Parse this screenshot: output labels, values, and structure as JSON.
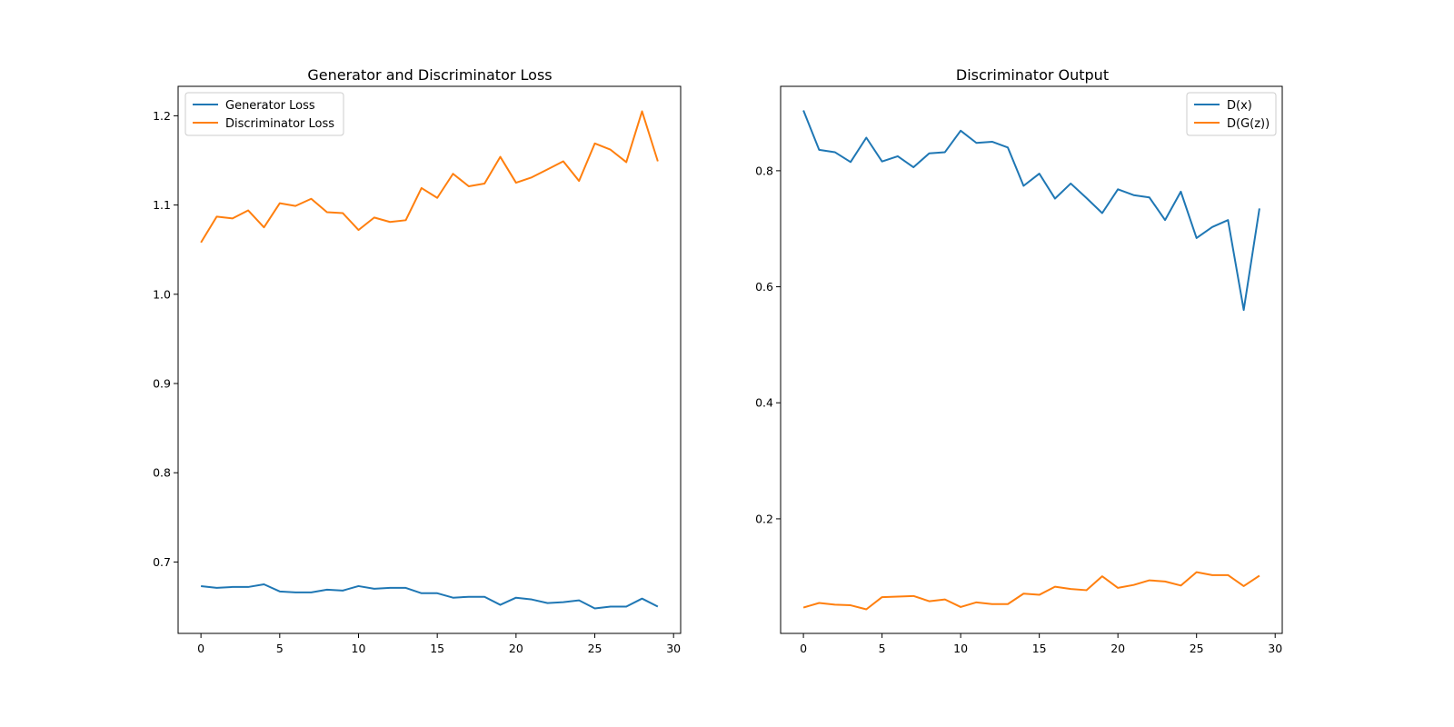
{
  "colors": {
    "series_1": "#1f77b4",
    "series_2": "#ff7f0e",
    "axes": "#000000",
    "legend_border": "#cccccc",
    "background": "#ffffff"
  },
  "chart_data": [
    {
      "type": "line",
      "title": "Generator and Discriminator Loss",
      "xlabel": "",
      "ylabel": "",
      "xlim": [
        -1.45,
        30.45
      ],
      "ylim": [
        0.62,
        1.233
      ],
      "xticks": [
        0,
        5,
        10,
        15,
        20,
        25,
        30
      ],
      "yticks": [
        0.7,
        0.8,
        0.9,
        1.0,
        1.1,
        1.2
      ],
      "ytick_labels": [
        "0.7",
        "0.8",
        "0.9",
        "1.0",
        "1.1",
        "1.2"
      ],
      "grid": false,
      "legend_position": "upper left",
      "x": [
        0,
        1,
        2,
        3,
        4,
        5,
        6,
        7,
        8,
        9,
        10,
        11,
        12,
        13,
        14,
        15,
        16,
        17,
        18,
        19,
        20,
        21,
        22,
        23,
        24,
        25,
        26,
        27,
        28,
        29
      ],
      "series": [
        {
          "name": "Generator Loss",
          "color": "#1f77b4",
          "values": [
            0.673,
            0.671,
            0.672,
            0.672,
            0.675,
            0.667,
            0.666,
            0.666,
            0.669,
            0.668,
            0.673,
            0.67,
            0.671,
            0.671,
            0.665,
            0.665,
            0.66,
            0.661,
            0.661,
            0.652,
            0.66,
            0.658,
            0.654,
            0.655,
            0.657,
            0.648,
            0.65,
            0.65,
            0.659,
            0.65
          ]
        },
        {
          "name": "Discriminator Loss",
          "color": "#ff7f0e",
          "values": [
            1.058,
            1.087,
            1.085,
            1.094,
            1.075,
            1.102,
            1.099,
            1.107,
            1.092,
            1.091,
            1.072,
            1.086,
            1.081,
            1.083,
            1.119,
            1.108,
            1.135,
            1.121,
            1.124,
            1.154,
            1.125,
            1.131,
            1.14,
            1.149,
            1.127,
            1.169,
            1.162,
            1.148,
            1.205,
            1.149
          ]
        }
      ]
    },
    {
      "type": "line",
      "title": "Discriminator Output",
      "xlabel": "",
      "ylabel": "",
      "xlim": [
        -1.45,
        30.45
      ],
      "ylim": [
        0.0025,
        0.9455
      ],
      "xticks": [
        0,
        5,
        10,
        15,
        20,
        25,
        30
      ],
      "yticks": [
        0.2,
        0.4,
        0.6,
        0.8
      ],
      "ytick_labels": [
        "0.2",
        "0.4",
        "0.6",
        "0.8"
      ],
      "grid": false,
      "legend_position": "upper right",
      "x": [
        0,
        1,
        2,
        3,
        4,
        5,
        6,
        7,
        8,
        9,
        10,
        11,
        12,
        13,
        14,
        15,
        16,
        17,
        18,
        19,
        20,
        21,
        22,
        23,
        24,
        25,
        26,
        27,
        28,
        29
      ],
      "series": [
        {
          "name": "D(x)",
          "color": "#1f77b4",
          "values": [
            0.904,
            0.836,
            0.832,
            0.815,
            0.857,
            0.816,
            0.825,
            0.806,
            0.83,
            0.832,
            0.869,
            0.848,
            0.85,
            0.84,
            0.774,
            0.795,
            0.752,
            0.778,
            0.753,
            0.727,
            0.768,
            0.758,
            0.754,
            0.715,
            0.764,
            0.684,
            0.703,
            0.715,
            0.56,
            0.735
          ]
        },
        {
          "name": "D(G(z))",
          "color": "#ff7f0e",
          "values": [
            0.047,
            0.055,
            0.052,
            0.051,
            0.044,
            0.065,
            0.066,
            0.067,
            0.058,
            0.061,
            0.048,
            0.056,
            0.053,
            0.053,
            0.071,
            0.069,
            0.083,
            0.079,
            0.077,
            0.101,
            0.081,
            0.086,
            0.094,
            0.092,
            0.085,
            0.108,
            0.103,
            0.103,
            0.084,
            0.102
          ]
        }
      ]
    }
  ]
}
